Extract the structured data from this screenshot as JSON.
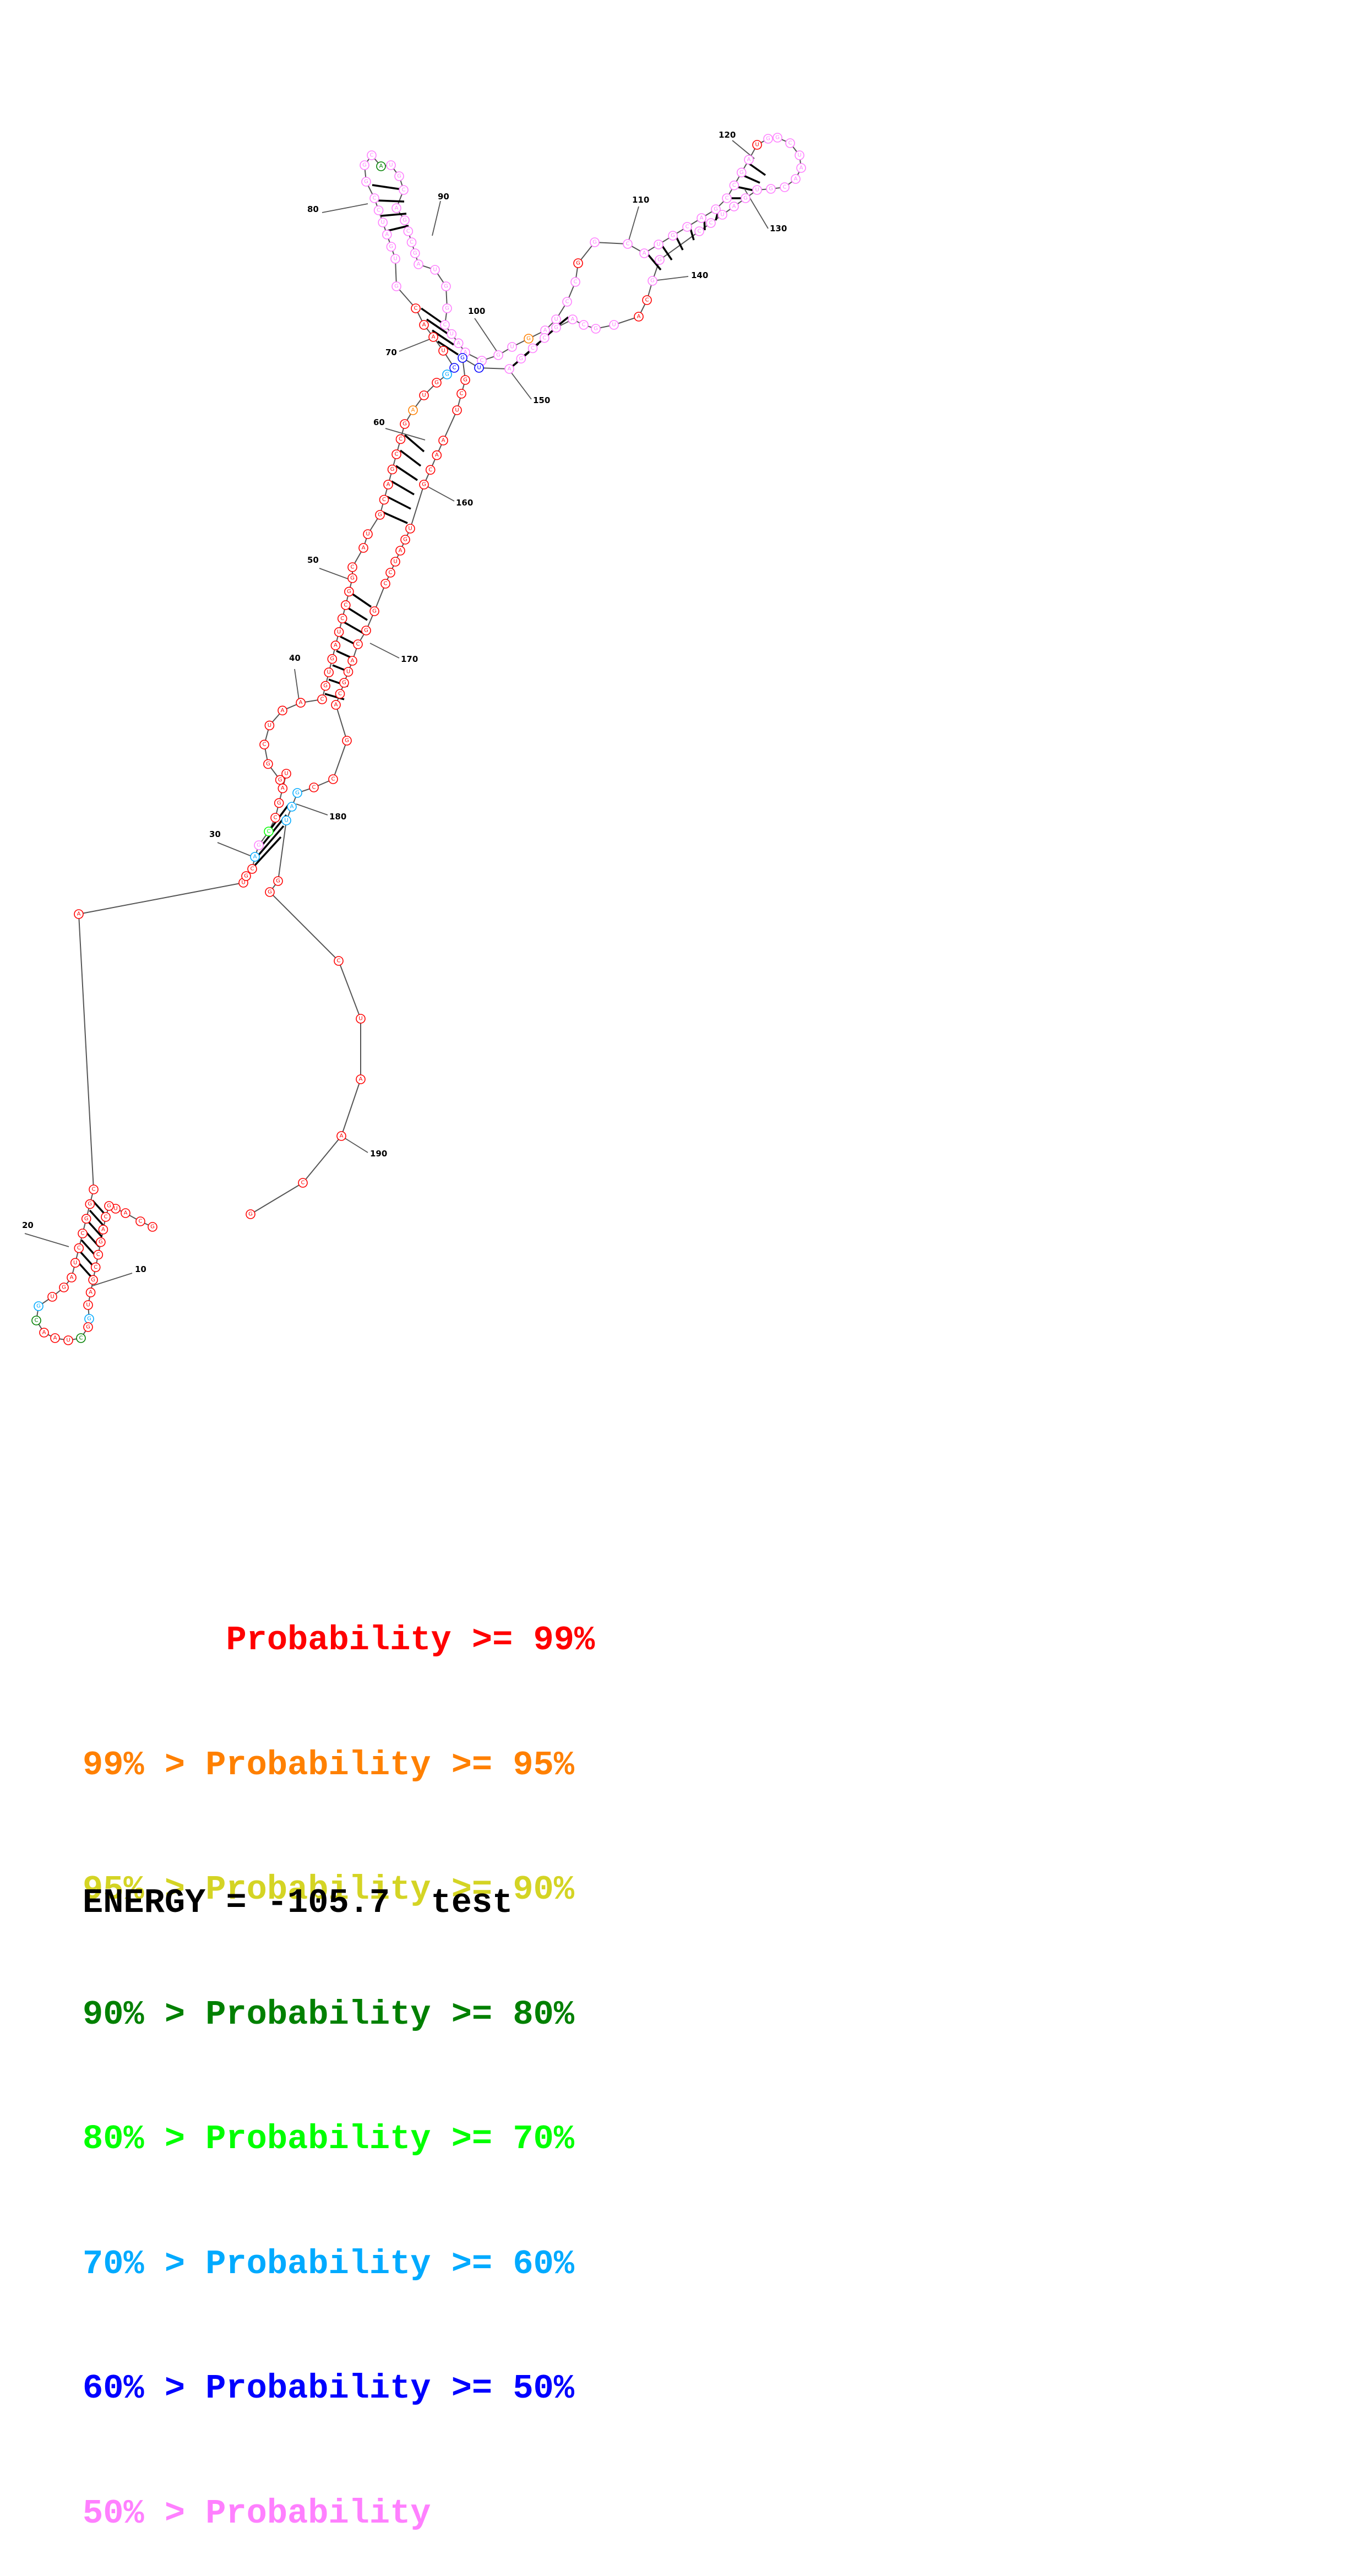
{
  "colors": {
    "p99": "#ff0000",
    "p95": "#ff8000",
    "p90": "#d4d424",
    "p80": "#008000",
    "p70": "#00ff00",
    "p60": "#00aaff",
    "p50": "#0000ff",
    "plow": "#ff80ff"
  },
  "number_labels": [
    "10",
    "20",
    "30",
    "40",
    "50",
    "60",
    "70",
    "80",
    "90",
    "100",
    "110",
    "120",
    "130",
    "140",
    "150",
    "160",
    "170",
    "180",
    "190"
  ],
  "legend": {
    "rows": [
      {
        "text": "       Probability >= 99%",
        "color": "#ff0000"
      },
      {
        "text": "99% > Probability >= 95%",
        "color": "#ff8000"
      },
      {
        "text": "95% > Probability >= 90%",
        "color": "#d4d424"
      },
      {
        "text": "90% > Probability >= 80%",
        "color": "#008000"
      },
      {
        "text": "80% > Probability >= 70%",
        "color": "#00ff00"
      },
      {
        "text": "70% > Probability >= 60%",
        "color": "#00aaff"
      },
      {
        "text": "60% > Probability >= 50%",
        "color": "#0000ff"
      },
      {
        "text": "50% > Probability",
        "color": "#ff80ff"
      }
    ]
  },
  "energy": {
    "value": "-105.7",
    "label_text": "ENERGY = -105.7  test"
  }
}
